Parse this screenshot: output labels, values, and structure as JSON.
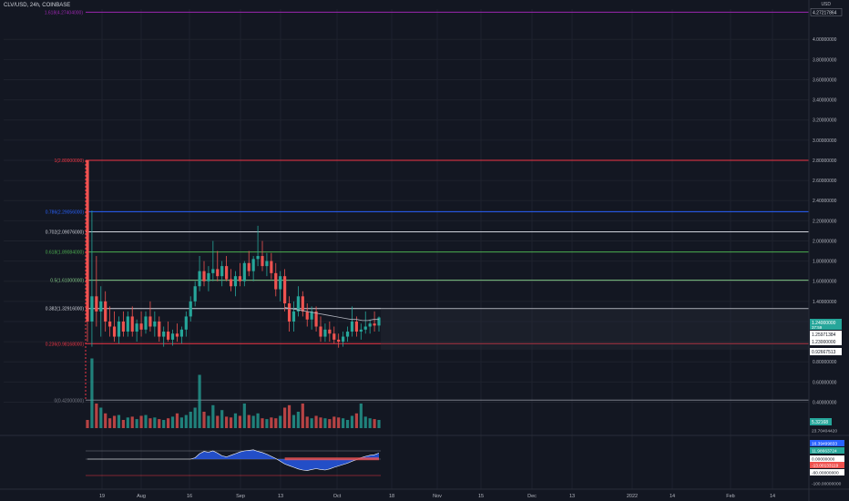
{
  "header": {
    "title": "CLV/USD, 24h, COINBASE"
  },
  "price_axis": {
    "unit": "USD",
    "top_label": "4.27217864",
    "ticks": [
      "4.00000000",
      "3.80000000",
      "3.60000000",
      "3.40000000",
      "3.20000000",
      "3.00000000",
      "2.80000000",
      "2.60000000",
      "2.40000000",
      "2.20000000",
      "2.00000000",
      "1.80000000",
      "1.60000000",
      "1.40000000",
      "1.20000000",
      "1.00000000",
      "0.80000000",
      "0.60000000",
      "0.40000000"
    ],
    "tick_values": [
      4.0,
      3.8,
      3.6,
      3.4,
      3.2,
      3.0,
      2.8,
      2.6,
      2.4,
      2.2,
      2.0,
      1.8,
      1.6,
      1.4,
      1.2,
      1.0,
      0.8,
      0.6,
      0.4
    ],
    "badges": [
      {
        "text": "1.24000000",
        "sub": "37:59",
        "bg": "#26a69a",
        "fg": "#ffffff"
      },
      {
        "text": "1.25971384",
        "bg": "#ffffff",
        "fg": "#131722"
      },
      {
        "text": "1.23000000",
        "bg": "#ffffff",
        "fg": "#131722"
      },
      {
        "text": "0.92667513",
        "bg": "#ffffff",
        "fg": "#131722"
      }
    ]
  },
  "fib_levels": [
    {
      "label": "1(2.80000000)",
      "color": "#f23645",
      "value": 2.8
    },
    {
      "label": "0.786(2.29056000)",
      "color": "#2962ff",
      "value": 2.29
    },
    {
      "label": "0.702(2.09076000)",
      "color": "#d1d4dc",
      "value": 2.09
    },
    {
      "label": "0.618(1.89084000)",
      "color": "#4caf50",
      "value": 1.89
    },
    {
      "label": "0.5(1.61000000)",
      "color": "#81c784",
      "value": 1.61
    },
    {
      "label": "0.382(1.32916000)",
      "color": "#d1d4dc",
      "value": 1.329
    },
    {
      "label": "0.236(0.98168000)",
      "color": "#f23645",
      "value": 0.98
    },
    {
      "label": "0(0.42000000)",
      "color": "#787b86",
      "value": 0.42
    }
  ],
  "top_level": {
    "label": "1.618(4.27404000)",
    "color": "#9c27b0",
    "value": 4.27
  },
  "volume_axis": {
    "label": "5.32168"
  },
  "indicator_axis": [
    "23.70404420",
    "16.39499833",
    "11.98663724",
    "0.00000000",
    "-13.00133119",
    "-60.00000000",
    "-100.00000000"
  ],
  "time_axis": [
    "19",
    "Aug",
    "16",
    "Sep",
    "13",
    "Oct",
    "18",
    "Nov",
    "15",
    "Dec",
    "13",
    "2022",
    "14",
    "Feb",
    "14"
  ],
  "colors": {
    "up": "#26a69a",
    "down": "#ef5350",
    "bg": "#131722",
    "grid": "#1e222d",
    "text": "#b2b5be"
  },
  "chart_data": {
    "type": "candlestick",
    "title": "CLV/USD, 24h, COINBASE",
    "ylabel": "USD",
    "ylim": [
      0.3,
      4.3
    ],
    "ohlc": [
      [
        2.8,
        2.8,
        1.0,
        1.2
      ],
      [
        1.2,
        2.3,
        0.95,
        1.45
      ],
      [
        1.45,
        1.85,
        1.15,
        1.3
      ],
      [
        1.3,
        1.55,
        1.05,
        1.4
      ],
      [
        1.4,
        1.5,
        1.1,
        1.2
      ],
      [
        1.2,
        1.35,
        1.05,
        1.15
      ],
      [
        1.15,
        1.3,
        1.0,
        1.05
      ],
      [
        1.05,
        1.25,
        0.98,
        1.2
      ],
      [
        1.2,
        1.3,
        1.05,
        1.1
      ],
      [
        1.1,
        1.3,
        1.05,
        1.25
      ],
      [
        1.25,
        1.35,
        1.05,
        1.1
      ],
      [
        1.1,
        1.22,
        1.0,
        1.18
      ],
      [
        1.18,
        1.3,
        1.05,
        1.12
      ],
      [
        1.12,
        1.3,
        1.08,
        1.25
      ],
      [
        1.25,
        1.4,
        1.1,
        1.15
      ],
      [
        1.15,
        1.3,
        1.05,
        1.2
      ],
      [
        1.2,
        1.25,
        1.0,
        1.05
      ],
      [
        1.05,
        1.15,
        0.95,
        1.1
      ],
      [
        1.1,
        1.2,
        1.0,
        1.02
      ],
      [
        1.02,
        1.12,
        0.96,
        1.08
      ],
      [
        1.08,
        1.18,
        1.0,
        1.05
      ],
      [
        1.05,
        1.15,
        0.98,
        1.12
      ],
      [
        1.12,
        1.3,
        1.05,
        1.25
      ],
      [
        1.25,
        1.45,
        1.2,
        1.4
      ],
      [
        1.4,
        1.6,
        1.35,
        1.55
      ],
      [
        1.55,
        1.85,
        1.5,
        1.7
      ],
      [
        1.7,
        1.8,
        1.55,
        1.6
      ],
      [
        1.6,
        1.75,
        1.5,
        1.68
      ],
      [
        1.68,
        2.0,
        1.6,
        1.72
      ],
      [
        1.72,
        1.9,
        1.6,
        1.65
      ],
      [
        1.65,
        1.8,
        1.55,
        1.75
      ],
      [
        1.75,
        1.85,
        1.6,
        1.62
      ],
      [
        1.62,
        1.72,
        1.5,
        1.55
      ],
      [
        1.55,
        1.7,
        1.45,
        1.65
      ],
      [
        1.65,
        1.78,
        1.55,
        1.6
      ],
      [
        1.6,
        1.8,
        1.55,
        1.78
      ],
      [
        1.78,
        1.9,
        1.65,
        1.7
      ],
      [
        1.7,
        1.85,
        1.6,
        1.82
      ],
      [
        1.82,
        2.15,
        1.75,
        1.85
      ],
      [
        1.85,
        2.0,
        1.7,
        1.75
      ],
      [
        1.75,
        1.88,
        1.65,
        1.8
      ],
      [
        1.8,
        1.88,
        1.62,
        1.68
      ],
      [
        1.68,
        1.78,
        1.45,
        1.52
      ],
      [
        1.52,
        1.7,
        1.4,
        1.65
      ],
      [
        1.65,
        1.72,
        1.3,
        1.38
      ],
      [
        1.38,
        1.45,
        1.1,
        1.2
      ],
      [
        1.2,
        1.4,
        1.1,
        1.3
      ],
      [
        1.3,
        1.55,
        1.25,
        1.45
      ],
      [
        1.45,
        1.5,
        1.25,
        1.3
      ],
      [
        1.3,
        1.38,
        1.15,
        1.22
      ],
      [
        1.22,
        1.35,
        1.12,
        1.3
      ],
      [
        1.3,
        1.35,
        1.1,
        1.15
      ],
      [
        1.15,
        1.25,
        1.0,
        1.05
      ],
      [
        1.05,
        1.18,
        1.0,
        1.12
      ],
      [
        1.12,
        1.2,
        1.0,
        1.08
      ],
      [
        1.08,
        1.15,
        0.98,
        1.02
      ],
      [
        1.02,
        1.08,
        0.94,
        1.0
      ],
      [
        1.0,
        1.1,
        0.95,
        1.05
      ],
      [
        1.05,
        1.15,
        1.0,
        1.1
      ],
      [
        1.1,
        1.35,
        1.05,
        1.2
      ],
      [
        1.2,
        1.25,
        1.05,
        1.1
      ],
      [
        1.1,
        1.18,
        1.02,
        1.12
      ],
      [
        1.12,
        1.3,
        1.08,
        1.15
      ],
      [
        1.15,
        1.22,
        1.08,
        1.18
      ],
      [
        1.18,
        1.3,
        1.1,
        1.16
      ],
      [
        1.16,
        1.25,
        1.1,
        1.24
      ]
    ],
    "ma": [
      1.34,
      1.33,
      1.32,
      1.31,
      1.3,
      1.29,
      1.28,
      1.27,
      1.26,
      1.25,
      1.24,
      1.23,
      1.22,
      1.22,
      1.21,
      1.21,
      1.22,
      1.22
    ],
    "volume": [
      1.0,
      8.5,
      3.0,
      2.5,
      1.8,
      1.2,
      1.5,
      1.6,
      1.0,
      1.3,
      1.4,
      1.1,
      1.5,
      1.6,
      1.2,
      1.3,
      1.1,
      1.0,
      1.2,
      1.4,
      1.8,
      1.3,
      1.6,
      2.0,
      2.5,
      6.5,
      2.0,
      1.5,
      2.8,
      1.5,
      2.2,
      1.4,
      1.3,
      1.8,
      1.5,
      3.0,
      1.6,
      1.5,
      1.8,
      1.2,
      1.1,
      1.3,
      1.2,
      1.5,
      2.5,
      2.8,
      1.6,
      2.0,
      3.0,
      1.4,
      1.2,
      1.5,
      1.3,
      1.2,
      1.1,
      1.4,
      1.3,
      1.2,
      1.0,
      1.5,
      1.8,
      3.0,
      1.4,
      1.2,
      1.1,
      1.0
    ],
    "oscillator": [
      0,
      0,
      0,
      0,
      0,
      0,
      0,
      0,
      0,
      0,
      0,
      0,
      0,
      0,
      0,
      0,
      0,
      0,
      0,
      0,
      0,
      0,
      0,
      0,
      5,
      20,
      28,
      25,
      30,
      22,
      12,
      8,
      14,
      20,
      26,
      30,
      32,
      34,
      28,
      24,
      18,
      10,
      2,
      -8,
      -18,
      -24,
      -30,
      -36,
      -40,
      -42,
      -38,
      -35,
      -38,
      -40,
      -36,
      -30,
      -25,
      -20,
      -15,
      -8,
      -2,
      5,
      10,
      14,
      16,
      22
    ]
  }
}
